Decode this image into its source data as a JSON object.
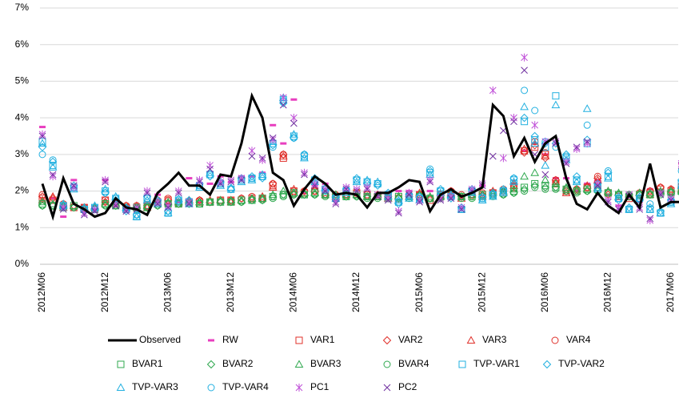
{
  "chart_data": {
    "type": "line",
    "categories": [
      "2012M06",
      null,
      null,
      null,
      null,
      null,
      "2012M12",
      null,
      null,
      null,
      null,
      null,
      "2013M06",
      null,
      null,
      null,
      null,
      null,
      "2013M12",
      null,
      null,
      null,
      null,
      null,
      "2014M06",
      null,
      null,
      null,
      null,
      null,
      "2014M12",
      null,
      null,
      null,
      null,
      null,
      "2015M06",
      null,
      null,
      null,
      null,
      null,
      "2015M12",
      null,
      null,
      null,
      null,
      null,
      "2016M06",
      null,
      null,
      null,
      null,
      null,
      "2016M12",
      null,
      null,
      null,
      null,
      null,
      "2017M06",
      null
    ],
    "ylim": [
      0,
      7
    ],
    "yticks": [
      {
        "value": 0,
        "label": "0%"
      },
      {
        "value": 1,
        "label": "1%"
      },
      {
        "value": 2,
        "label": "2%"
      },
      {
        "value": 3,
        "label": "3%"
      },
      {
        "value": 4,
        "label": "4%"
      },
      {
        "value": 5,
        "label": "5%"
      },
      {
        "value": 6,
        "label": "6%"
      },
      {
        "value": 7,
        "label": "7%"
      }
    ],
    "grid": true,
    "legend": "bottom",
    "series": [
      {
        "name": "Observed",
        "color": "#000000",
        "marker": "line",
        "values": [
          2.2,
          1.3,
          2.35,
          1.65,
          1.5,
          1.3,
          1.4,
          1.8,
          1.55,
          1.5,
          1.35,
          1.95,
          2.2,
          2.5,
          2.15,
          2.15,
          1.9,
          2.45,
          2.4,
          3.3,
          4.6,
          4.0,
          2.5,
          2.3,
          1.6,
          2.05,
          2.4,
          2.2,
          1.9,
          1.95,
          1.9,
          1.55,
          1.95,
          1.95,
          2.1,
          2.3,
          2.25,
          1.45,
          1.9,
          2.05,
          1.85,
          1.95,
          2.1,
          4.35,
          4.05,
          2.95,
          3.45,
          2.8,
          3.3,
          3.5,
          2.35,
          1.65,
          1.5,
          1.95,
          1.6,
          1.4,
          1.9,
          1.55,
          2.75,
          1.55,
          1.7,
          1.7
        ]
      },
      {
        "name": "RW",
        "color": "#e83fbf",
        "marker": "dash",
        "values": [
          3.75,
          1.8,
          1.3,
          2.3,
          1.6,
          1.5,
          2.3,
          1.6,
          1.6,
          1.6,
          1.5,
          1.9,
          1.65,
          1.7,
          2.35,
          1.7,
          2.2,
          2.4,
          2.25,
          2.4,
          2.4,
          2.5,
          3.8,
          3.3,
          4.5,
          1.95,
          2.15,
          2.2,
          1.75,
          2.0,
          1.9,
          1.9,
          1.9,
          1.95,
          2.0,
          2.0,
          1.95,
          2.0,
          1.9,
          2.0,
          1.8,
          1.95,
          2.15,
          2.0,
          2.0,
          2.2,
          3.1,
          3.3,
          3.0,
          2.35,
          2.35,
          2.0,
          2.2,
          2.3,
          1.9,
          1.6,
          1.95,
          1.7,
          2.05,
          2.0,
          1.9,
          2.75
        ]
      },
      {
        "name": "VAR1",
        "color": "#e0302a",
        "marker": "square",
        "values": [
          1.8,
          1.75,
          1.6,
          1.55,
          1.55,
          1.5,
          1.75,
          1.65,
          1.55,
          1.55,
          1.6,
          1.7,
          1.75,
          1.65,
          1.7,
          1.7,
          1.7,
          1.75,
          1.75,
          1.75,
          1.8,
          1.8,
          2.15,
          2.9,
          2.0,
          1.95,
          2.0,
          1.9,
          1.85,
          1.9,
          1.95,
          1.9,
          1.85,
          1.85,
          1.8,
          1.85,
          1.9,
          1.75,
          1.9,
          1.95,
          1.85,
          1.9,
          1.9,
          1.95,
          2.0,
          2.1,
          3.1,
          3.2,
          3.0,
          2.2,
          2.0,
          2.0,
          2.1,
          2.2,
          1.95,
          1.85,
          1.8,
          1.9,
          1.95,
          2.05,
          2.0,
          2.1
        ]
      },
      {
        "name": "VAR2",
        "color": "#e0302a",
        "marker": "diamond",
        "values": [
          1.85,
          1.8,
          1.6,
          1.6,
          1.55,
          1.5,
          1.7,
          1.7,
          1.6,
          1.55,
          1.6,
          1.75,
          1.75,
          1.7,
          1.7,
          1.75,
          1.7,
          1.7,
          1.75,
          1.8,
          1.8,
          1.8,
          2.2,
          3.0,
          1.95,
          2.0,
          2.0,
          1.9,
          1.9,
          1.9,
          1.95,
          1.85,
          1.9,
          1.85,
          1.8,
          1.9,
          1.9,
          1.8,
          1.9,
          2.0,
          1.85,
          1.9,
          1.9,
          1.95,
          2.0,
          2.2,
          3.05,
          3.25,
          2.9,
          2.3,
          2.0,
          2.05,
          2.1,
          2.35,
          1.9,
          1.9,
          1.85,
          1.9,
          2.0,
          2.1,
          2.0,
          2.1
        ]
      },
      {
        "name": "VAR3",
        "color": "#e0302a",
        "marker": "triangle",
        "values": [
          1.75,
          1.85,
          1.55,
          1.6,
          1.5,
          1.55,
          1.7,
          1.65,
          1.55,
          1.6,
          1.55,
          1.7,
          1.7,
          1.7,
          1.75,
          1.7,
          1.75,
          1.75,
          1.7,
          1.75,
          1.8,
          1.85,
          2.1,
          2.95,
          2.05,
          1.95,
          2.05,
          1.95,
          1.85,
          1.95,
          1.9,
          1.85,
          1.9,
          1.8,
          1.85,
          1.85,
          1.95,
          1.8,
          1.85,
          1.95,
          1.8,
          1.95,
          1.85,
          2.0,
          1.95,
          2.15,
          3.15,
          3.3,
          2.95,
          2.25,
          1.95,
          2.0,
          2.15,
          2.3,
          2.0,
          1.85,
          1.85,
          1.95,
          1.9,
          2.0,
          2.05,
          2.05
        ]
      },
      {
        "name": "VAR4",
        "color": "#e0302a",
        "marker": "circle",
        "values": [
          1.9,
          1.75,
          1.65,
          1.55,
          1.55,
          1.5,
          1.75,
          1.7,
          1.6,
          1.6,
          1.6,
          1.75,
          1.8,
          1.7,
          1.7,
          1.75,
          1.7,
          1.75,
          1.75,
          1.8,
          1.85,
          1.8,
          2.2,
          3.0,
          2.0,
          2.0,
          2.0,
          1.9,
          1.9,
          1.9,
          1.95,
          1.9,
          1.85,
          1.9,
          1.8,
          1.9,
          1.9,
          1.8,
          1.9,
          2.0,
          1.9,
          1.9,
          1.95,
          1.95,
          2.05,
          2.15,
          3.1,
          3.35,
          3.05,
          2.3,
          2.05,
          2.05,
          2.1,
          2.4,
          1.95,
          1.9,
          1.85,
          1.95,
          2.0,
          2.1,
          2.05,
          2.15
        ]
      },
      {
        "name": "BVAR1",
        "color": "#2fa84f",
        "marker": "square",
        "values": [
          1.65,
          1.6,
          1.55,
          1.6,
          1.5,
          1.5,
          1.65,
          1.6,
          1.5,
          1.55,
          1.55,
          1.65,
          1.65,
          1.65,
          1.7,
          1.65,
          1.7,
          1.7,
          1.7,
          1.75,
          1.75,
          1.8,
          1.85,
          1.9,
          1.95,
          1.9,
          1.95,
          1.9,
          1.85,
          1.85,
          1.9,
          1.85,
          1.85,
          1.8,
          1.85,
          1.85,
          1.85,
          1.8,
          1.85,
          1.9,
          1.85,
          1.85,
          1.9,
          1.9,
          1.95,
          2.0,
          2.1,
          2.2,
          2.15,
          2.1,
          2.05,
          2.0,
          2.05,
          2.05,
          1.95,
          1.9,
          1.85,
          1.9,
          1.9,
          1.95,
          1.95,
          2.0
        ]
      },
      {
        "name": "BVAR2",
        "color": "#2fa84f",
        "marker": "diamond",
        "values": [
          1.6,
          1.6,
          1.55,
          1.55,
          1.5,
          1.5,
          1.6,
          1.6,
          1.55,
          1.55,
          1.55,
          1.6,
          1.65,
          1.65,
          1.65,
          1.7,
          1.7,
          1.7,
          1.7,
          1.7,
          1.75,
          1.75,
          1.85,
          1.9,
          1.9,
          1.9,
          1.9,
          1.9,
          1.85,
          1.85,
          1.85,
          1.85,
          1.85,
          1.8,
          1.8,
          1.85,
          1.85,
          1.8,
          1.8,
          1.85,
          1.85,
          1.85,
          1.85,
          1.9,
          1.9,
          1.95,
          2.05,
          2.15,
          2.1,
          2.1,
          2.05,
          2.0,
          2.0,
          2.0,
          1.95,
          1.9,
          1.9,
          1.9,
          1.9,
          1.95,
          1.95,
          1.95
        ]
      },
      {
        "name": "BVAR3",
        "color": "#2fa84f",
        "marker": "triangle",
        "values": [
          1.7,
          1.65,
          1.6,
          1.6,
          1.55,
          1.55,
          1.65,
          1.65,
          1.55,
          1.55,
          1.6,
          1.65,
          1.7,
          1.7,
          1.7,
          1.7,
          1.7,
          1.75,
          1.75,
          1.75,
          1.8,
          1.8,
          1.9,
          2.0,
          1.95,
          1.95,
          1.95,
          1.9,
          1.9,
          1.9,
          1.9,
          1.85,
          1.85,
          1.85,
          1.85,
          1.85,
          1.9,
          1.85,
          1.85,
          1.9,
          1.85,
          1.9,
          1.9,
          1.95,
          2.0,
          2.05,
          2.4,
          2.5,
          2.3,
          2.2,
          2.1,
          2.05,
          2.05,
          2.1,
          2.0,
          1.95,
          1.9,
          1.95,
          1.95,
          2.0,
          2.0,
          2.0
        ]
      },
      {
        "name": "BVAR4",
        "color": "#2fa84f",
        "marker": "circle",
        "values": [
          1.6,
          1.6,
          1.55,
          1.55,
          1.5,
          1.5,
          1.6,
          1.6,
          1.5,
          1.5,
          1.55,
          1.6,
          1.65,
          1.65,
          1.65,
          1.65,
          1.7,
          1.7,
          1.7,
          1.7,
          1.75,
          1.75,
          1.8,
          1.85,
          1.9,
          1.9,
          1.9,
          1.85,
          1.85,
          1.85,
          1.85,
          1.8,
          1.8,
          1.8,
          1.8,
          1.8,
          1.85,
          1.8,
          1.8,
          1.85,
          1.8,
          1.8,
          1.85,
          1.85,
          1.9,
          1.95,
          2.0,
          2.1,
          2.05,
          2.05,
          2.0,
          1.95,
          2.0,
          2.0,
          1.95,
          1.9,
          1.9,
          1.9,
          1.9,
          1.9,
          1.95,
          1.95
        ]
      },
      {
        "name": "TVP-VAR1",
        "color": "#22b0e0",
        "marker": "square",
        "values": [
          3.35,
          2.7,
          1.6,
          2.1,
          1.5,
          1.55,
          2.0,
          1.8,
          1.5,
          1.3,
          1.8,
          1.7,
          1.4,
          1.75,
          1.7,
          2.15,
          2.45,
          2.2,
          2.05,
          2.3,
          2.35,
          2.4,
          3.3,
          4.5,
          3.5,
          2.95,
          2.3,
          2.05,
          1.8,
          2.0,
          2.3,
          2.25,
          2.2,
          1.9,
          1.7,
          1.85,
          1.8,
          2.5,
          2.0,
          1.85,
          1.5,
          2.0,
          1.8,
          1.9,
          2.0,
          2.3,
          3.9,
          3.4,
          3.2,
          4.6,
          2.9,
          2.3,
          3.3,
          2.1,
          2.4,
          1.8,
          1.5,
          1.8,
          1.5,
          1.4,
          1.7,
          2.2
        ]
      },
      {
        "name": "TVP-VAR2",
        "color": "#22b0e0",
        "marker": "diamond",
        "values": [
          3.2,
          2.8,
          1.55,
          2.15,
          1.45,
          1.5,
          1.95,
          1.75,
          1.45,
          1.35,
          1.85,
          1.75,
          1.45,
          1.7,
          1.75,
          2.2,
          2.4,
          2.25,
          2.05,
          2.35,
          2.4,
          2.35,
          3.25,
          4.4,
          3.45,
          3.0,
          2.35,
          2.0,
          1.85,
          2.05,
          2.35,
          2.2,
          2.15,
          1.95,
          1.65,
          1.9,
          1.85,
          2.55,
          2.05,
          1.8,
          1.55,
          2.05,
          1.85,
          1.95,
          2.05,
          2.35,
          4.0,
          3.5,
          3.3,
          3.3,
          3.0,
          2.4,
          3.4,
          2.2,
          2.5,
          1.75,
          1.55,
          1.75,
          1.55,
          1.45,
          1.75,
          2.3
        ]
      },
      {
        "name": "TVP-VAR3",
        "color": "#22b0e0",
        "marker": "triangle",
        "values": [
          3.3,
          2.65,
          1.65,
          2.05,
          1.55,
          1.6,
          2.05,
          1.85,
          1.55,
          1.3,
          1.75,
          1.65,
          1.4,
          1.8,
          1.65,
          2.1,
          2.5,
          2.15,
          2.1,
          2.25,
          2.3,
          2.45,
          3.35,
          4.55,
          3.55,
          2.9,
          2.25,
          2.1,
          1.8,
          1.95,
          2.25,
          2.3,
          2.25,
          1.85,
          1.75,
          1.8,
          1.75,
          2.45,
          1.95,
          1.9,
          1.5,
          1.95,
          1.75,
          1.85,
          1.95,
          2.25,
          4.3,
          3.3,
          2.7,
          4.35,
          2.85,
          2.25,
          4.25,
          2.05,
          2.35,
          1.85,
          1.5,
          1.85,
          1.5,
          1.4,
          1.65,
          2.15
        ]
      },
      {
        "name": "TVP-VAR4",
        "color": "#22b0e0",
        "marker": "circle",
        "values": [
          3.0,
          2.85,
          1.6,
          2.1,
          1.5,
          1.55,
          1.95,
          1.8,
          1.5,
          1.35,
          1.8,
          1.7,
          1.45,
          1.75,
          1.7,
          2.15,
          2.45,
          2.2,
          2.05,
          2.3,
          2.35,
          2.4,
          3.2,
          4.45,
          3.45,
          3.0,
          2.3,
          2.05,
          1.8,
          2.0,
          2.3,
          2.25,
          2.2,
          1.9,
          1.7,
          1.85,
          1.8,
          2.6,
          2.0,
          1.85,
          1.5,
          2.0,
          1.8,
          1.9,
          2.0,
          2.35,
          4.75,
          4.2,
          3.35,
          3.2,
          2.95,
          2.3,
          3.8,
          2.1,
          2.55,
          1.8,
          1.5,
          1.8,
          1.65,
          1.4,
          1.7,
          2.55
        ]
      },
      {
        "name": "PC1",
        "color": "#c050d8",
        "marker": "cross",
        "values": [
          3.55,
          2.4,
          1.55,
          2.1,
          1.4,
          1.5,
          2.3,
          1.65,
          1.5,
          1.55,
          2.0,
          1.7,
          1.6,
          2.0,
          1.7,
          2.3,
          2.7,
          2.25,
          2.3,
          2.35,
          3.1,
          2.85,
          3.4,
          4.55,
          4.0,
          2.5,
          2.2,
          2.05,
          1.7,
          2.1,
          2.05,
          2.1,
          1.9,
          1.8,
          1.45,
          1.95,
          1.75,
          2.3,
          1.8,
          1.85,
          1.55,
          2.05,
          2.2,
          4.75,
          2.9,
          4.0,
          5.65,
          3.8,
          3.35,
          3.35,
          2.8,
          3.15,
          3.3,
          2.2,
          1.75,
          1.55,
          1.9,
          1.55,
          1.2,
          1.95,
          1.8,
          2.75
        ]
      },
      {
        "name": "PC2",
        "color": "#7030a0",
        "marker": "x",
        "values": [
          3.5,
          2.45,
          1.5,
          2.15,
          1.35,
          1.45,
          2.25,
          1.6,
          1.45,
          1.5,
          1.95,
          1.65,
          1.55,
          1.95,
          1.65,
          2.25,
          2.6,
          2.2,
          2.25,
          2.3,
          2.95,
          2.9,
          3.45,
          4.35,
          3.85,
          2.45,
          2.15,
          2.0,
          1.65,
          2.05,
          2.0,
          2.05,
          1.85,
          1.75,
          1.4,
          1.9,
          1.7,
          2.25,
          1.75,
          1.8,
          1.5,
          2.0,
          2.15,
          2.95,
          3.65,
          3.9,
          5.3,
          3.0,
          2.45,
          3.3,
          2.75,
          3.2,
          3.35,
          2.15,
          1.7,
          1.5,
          1.85,
          1.5,
          1.25,
          1.9,
          1.75,
          2.7
        ]
      }
    ]
  }
}
